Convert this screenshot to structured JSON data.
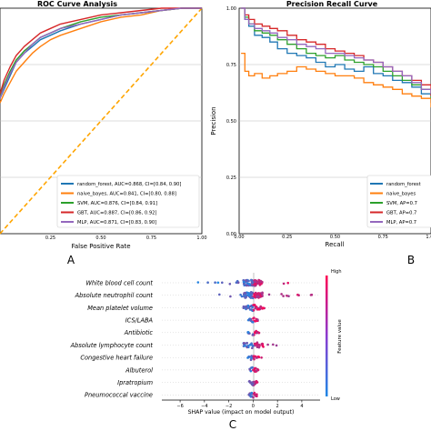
{
  "chart_data": [
    {
      "type": "line",
      "title": "ROC Curve Analysis",
      "xlabel": "False Positive Rate",
      "xlim": [
        0,
        1
      ],
      "x_ticks": [
        "0.25",
        "0.50",
        "0.75",
        "1.00"
      ],
      "panel_label": "A",
      "grid": true,
      "legend_position": "lower-right",
      "series": [
        {
          "name": "random_forest, AUC=0.868, CI=[0.84, 0.90]",
          "color": "#1f77b4",
          "x": [
            0,
            0.02,
            0.05,
            0.08,
            0.12,
            0.16,
            0.2,
            0.25,
            0.3,
            0.4,
            0.5,
            0.6,
            0.7,
            0.8,
            0.9,
            1.0
          ],
          "y": [
            0.6,
            0.64,
            0.7,
            0.76,
            0.8,
            0.83,
            0.86,
            0.88,
            0.9,
            0.93,
            0.95,
            0.97,
            0.98,
            0.99,
            1.0,
            1.0
          ]
        },
        {
          "name": "naive_bayes, AUC=0.841, CI=[0.80, 0.88]",
          "color": "#ff7f0e",
          "x": [
            0,
            0.02,
            0.05,
            0.08,
            0.12,
            0.16,
            0.2,
            0.25,
            0.3,
            0.4,
            0.5,
            0.6,
            0.7,
            0.8,
            0.9,
            1.0
          ],
          "y": [
            0.58,
            0.62,
            0.67,
            0.72,
            0.76,
            0.8,
            0.83,
            0.86,
            0.88,
            0.91,
            0.94,
            0.96,
            0.97,
            0.99,
            1.0,
            1.0
          ]
        },
        {
          "name": "SVM, AUC=0.876, CI=[0.84, 0.91]",
          "color": "#2ca02c",
          "x": [
            0,
            0.02,
            0.05,
            0.08,
            0.12,
            0.16,
            0.2,
            0.25,
            0.3,
            0.4,
            0.5,
            0.6,
            0.7,
            0.8,
            0.9,
            1.0
          ],
          "y": [
            0.61,
            0.66,
            0.72,
            0.77,
            0.81,
            0.84,
            0.87,
            0.89,
            0.91,
            0.94,
            0.96,
            0.97,
            0.98,
            0.99,
            1.0,
            1.0
          ]
        },
        {
          "name": "GBT, AUC=0.887, CI=[0.86, 0.92]",
          "color": "#d62728",
          "x": [
            0,
            0.02,
            0.05,
            0.08,
            0.12,
            0.16,
            0.2,
            0.25,
            0.3,
            0.4,
            0.5,
            0.6,
            0.7,
            0.8,
            0.9,
            1.0
          ],
          "y": [
            0.62,
            0.68,
            0.74,
            0.79,
            0.83,
            0.86,
            0.89,
            0.91,
            0.93,
            0.95,
            0.97,
            0.98,
            0.99,
            1.0,
            1.0,
            1.0
          ]
        },
        {
          "name": "MLP, AUC=0.871, CI=[0.83, 0.90]",
          "color": "#9467bd",
          "x": [
            0,
            0.02,
            0.05,
            0.08,
            0.12,
            0.16,
            0.2,
            0.25,
            0.3,
            0.4,
            0.5,
            0.6,
            0.7,
            0.8,
            0.9,
            1.0
          ],
          "y": [
            0.6,
            0.65,
            0.71,
            0.76,
            0.8,
            0.84,
            0.87,
            0.89,
            0.91,
            0.93,
            0.95,
            0.97,
            0.98,
            0.99,
            1.0,
            1.0
          ]
        }
      ],
      "reference_line": {
        "x": [
          0,
          1
        ],
        "y": [
          0,
          1
        ],
        "color": "#ffa500",
        "style": "dashed"
      }
    },
    {
      "type": "line",
      "title": "Precision Recall Curve",
      "xlabel": "Recall",
      "ylabel": "Precision",
      "xlim": [
        0,
        1
      ],
      "ylim": [
        0,
        1
      ],
      "x_ticks": [
        "0.00",
        "0.25",
        "0.50",
        "0.75",
        "1.00"
      ],
      "y_ticks": [
        "0.00",
        "0.25",
        "0.50",
        "0.75",
        "1.00"
      ],
      "panel_label": "B",
      "grid": true,
      "legend_position": "lower-right",
      "series": [
        {
          "name": "random_forest",
          "color": "#1f77b4",
          "x": [
            0.01,
            0.03,
            0.05,
            0.08,
            0.12,
            0.16,
            0.2,
            0.25,
            0.3,
            0.35,
            0.4,
            0.45,
            0.5,
            0.55,
            0.6,
            0.65,
            0.7,
            0.75,
            0.8,
            0.85,
            0.9,
            0.95,
            1.0
          ],
          "y": [
            1.0,
            0.95,
            0.92,
            0.88,
            0.87,
            0.85,
            0.82,
            0.8,
            0.79,
            0.78,
            0.76,
            0.74,
            0.75,
            0.73,
            0.72,
            0.74,
            0.71,
            0.7,
            0.68,
            0.67,
            0.65,
            0.62,
            0.58
          ]
        },
        {
          "name": "naive_bayes",
          "color": "#ff7f0e",
          "x": [
            0.01,
            0.03,
            0.05,
            0.08,
            0.12,
            0.16,
            0.2,
            0.25,
            0.3,
            0.35,
            0.4,
            0.45,
            0.5,
            0.55,
            0.6,
            0.65,
            0.7,
            0.75,
            0.8,
            0.85,
            0.9,
            0.95,
            1.0
          ],
          "y": [
            0.8,
            0.72,
            0.7,
            0.71,
            0.69,
            0.7,
            0.71,
            0.72,
            0.74,
            0.73,
            0.72,
            0.71,
            0.7,
            0.7,
            0.69,
            0.67,
            0.66,
            0.65,
            0.64,
            0.62,
            0.61,
            0.6,
            0.56
          ]
        },
        {
          "name": "SVM",
          "color": "#2ca02c",
          "x": [
            0.01,
            0.03,
            0.05,
            0.08,
            0.12,
            0.16,
            0.2,
            0.25,
            0.3,
            0.35,
            0.4,
            0.45,
            0.5,
            0.55,
            0.6,
            0.65,
            0.7,
            0.75,
            0.8,
            0.85,
            0.9,
            0.95,
            1.0
          ],
          "y": [
            1.0,
            0.96,
            0.93,
            0.9,
            0.89,
            0.88,
            0.86,
            0.84,
            0.82,
            0.8,
            0.79,
            0.78,
            0.79,
            0.77,
            0.76,
            0.75,
            0.74,
            0.72,
            0.7,
            0.68,
            0.66,
            0.64,
            0.6
          ]
        },
        {
          "name": "GBT",
          "color": "#d62728",
          "x": [
            0.01,
            0.03,
            0.05,
            0.08,
            0.12,
            0.16,
            0.2,
            0.25,
            0.3,
            0.35,
            0.4,
            0.45,
            0.5,
            0.55,
            0.6,
            0.65,
            0.7,
            0.75,
            0.8,
            0.85,
            0.9,
            0.95,
            1.0
          ],
          "y": [
            1.0,
            0.97,
            0.95,
            0.93,
            0.92,
            0.91,
            0.9,
            0.88,
            0.86,
            0.85,
            0.84,
            0.82,
            0.81,
            0.8,
            0.79,
            0.77,
            0.76,
            0.74,
            0.72,
            0.7,
            0.68,
            0.66,
            0.61
          ]
        },
        {
          "name": "MLP",
          "color": "#9467bd",
          "x": [
            0.01,
            0.03,
            0.05,
            0.08,
            0.12,
            0.16,
            0.2,
            0.25,
            0.3,
            0.35,
            0.4,
            0.45,
            0.5,
            0.55,
            0.6,
            0.65,
            0.7,
            0.75,
            0.8,
            0.85,
            0.9,
            0.95,
            1.0
          ],
          "y": [
            1.0,
            0.95,
            0.93,
            0.91,
            0.9,
            0.89,
            0.87,
            0.86,
            0.84,
            0.83,
            0.82,
            0.8,
            0.8,
            0.79,
            0.78,
            0.77,
            0.76,
            0.74,
            0.72,
            0.7,
            0.67,
            0.64,
            0.62
          ]
        }
      ],
      "legend_entries_visible": [
        "random_forest",
        "naive_bayes",
        "SVM, AP=0.7",
        "GBT, AP=0.7",
        "MLP, AP=0.7"
      ]
    },
    {
      "type": "scatter",
      "subtype": "shap-beeswarm",
      "xlabel": "SHAP value (impact on model output)",
      "x_ticks": [
        "−6",
        "−4",
        "−2",
        "0",
        "2",
        "4"
      ],
      "xlim": [
        -7.5,
        5.5
      ],
      "panel_label": "C",
      "colorbar": {
        "label": "Feature value",
        "high": "High",
        "low": "Low",
        "colors": [
          "#1e88e5",
          "#ff0052"
        ]
      },
      "features": [
        {
          "name": "White blood cell count",
          "min": -5.2,
          "max": 3.5
        },
        {
          "name": "Absolute neutrophil count",
          "min": -2.8,
          "max": 5.0
        },
        {
          "name": "Mean platelet volume",
          "min": -1.0,
          "max": 1.2
        },
        {
          "name": "ICS/LABA",
          "min": -0.4,
          "max": 0.4
        },
        {
          "name": "Antibiotic",
          "min": -0.5,
          "max": 0.5
        },
        {
          "name": "Absolute lymphocyte count",
          "min": -0.6,
          "max": 2.0
        },
        {
          "name": "Congestive heart failure",
          "min": -0.3,
          "max": 0.7
        },
        {
          "name": "Albuterol",
          "min": -0.3,
          "max": 0.5
        },
        {
          "name": "Ipratropium",
          "min": -0.3,
          "max": 0.4
        },
        {
          "name": "Pneumococcal vaccine",
          "min": -0.3,
          "max": 0.4
        }
      ]
    }
  ]
}
